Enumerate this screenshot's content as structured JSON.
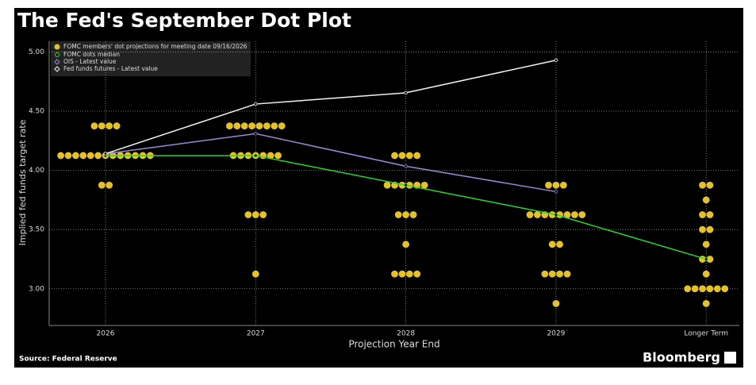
{
  "chart_data": {
    "type": "dot",
    "title": "The Fed's September Dot Plot",
    "x_label": "Projection Year End",
    "y_label": "Implied fed funds target rate",
    "source": "Source: Federal Reserve",
    "brand": "Bloomberg",
    "categories": [
      "2026",
      "2027",
      "2028",
      "2029",
      "Longer Term"
    ],
    "ylim": [
      2.69,
      5.09
    ],
    "yticks": [
      {
        "value": 3,
        "label": "3.00"
      },
      {
        "value": 3.5,
        "label": "3.50"
      },
      {
        "value": 4,
        "label": "4.00"
      },
      {
        "value": 4.5,
        "label": "4.50"
      },
      {
        "value": 5,
        "label": "5.00"
      }
    ],
    "grid": true,
    "legend": "top-left",
    "dots": {
      "name": "FOMC members' dot projections for meeting date 09/16/2026",
      "color": "#e6c229",
      "levels": [
        [
          {
            "rate": 4.375,
            "count": 4
          },
          {
            "rate": 4.125,
            "count": 13
          },
          {
            "rate": 3.875,
            "count": 2
          }
        ],
        [
          {
            "rate": 4.375,
            "count": 8
          },
          {
            "rate": 4.125,
            "count": 7
          },
          {
            "rate": 3.625,
            "count": 3
          },
          {
            "rate": 3.125,
            "count": 1
          }
        ],
        [
          {
            "rate": 4.125,
            "count": 4
          },
          {
            "rate": 3.875,
            "count": 6
          },
          {
            "rate": 3.625,
            "count": 3
          },
          {
            "rate": 3.375,
            "count": 1
          },
          {
            "rate": 3.125,
            "count": 4
          }
        ],
        [
          {
            "rate": 3.875,
            "count": 3
          },
          {
            "rate": 3.625,
            "count": 8
          },
          {
            "rate": 3.375,
            "count": 2
          },
          {
            "rate": 3.125,
            "count": 4
          },
          {
            "rate": 2.875,
            "count": 1
          }
        ],
        [
          {
            "rate": 3.875,
            "count": 2
          },
          {
            "rate": 3.75,
            "count": 1
          },
          {
            "rate": 3.625,
            "count": 2
          },
          {
            "rate": 3.5,
            "count": 2
          },
          {
            "rate": 3.375,
            "count": 1
          },
          {
            "rate": 3.25,
            "count": 2
          },
          {
            "rate": 3.125,
            "count": 1
          },
          {
            "rate": 3.0,
            "count": 6
          },
          {
            "rate": 2.875,
            "count": 1
          }
        ]
      ]
    },
    "series": [
      {
        "name": "FOMC dots median",
        "color": "#2bd62b",
        "values": [
          4.125,
          4.125,
          3.875,
          3.625,
          3.25
        ]
      },
      {
        "name": "OIS - Latest value",
        "color": "#9c86d8",
        "values": [
          4.14,
          4.31,
          4.035,
          3.82,
          null
        ]
      },
      {
        "name": "Fed funds futures - Latest value",
        "color": "#f2f2f2",
        "values": [
          4.14,
          4.56,
          4.655,
          4.93,
          null
        ]
      }
    ]
  }
}
